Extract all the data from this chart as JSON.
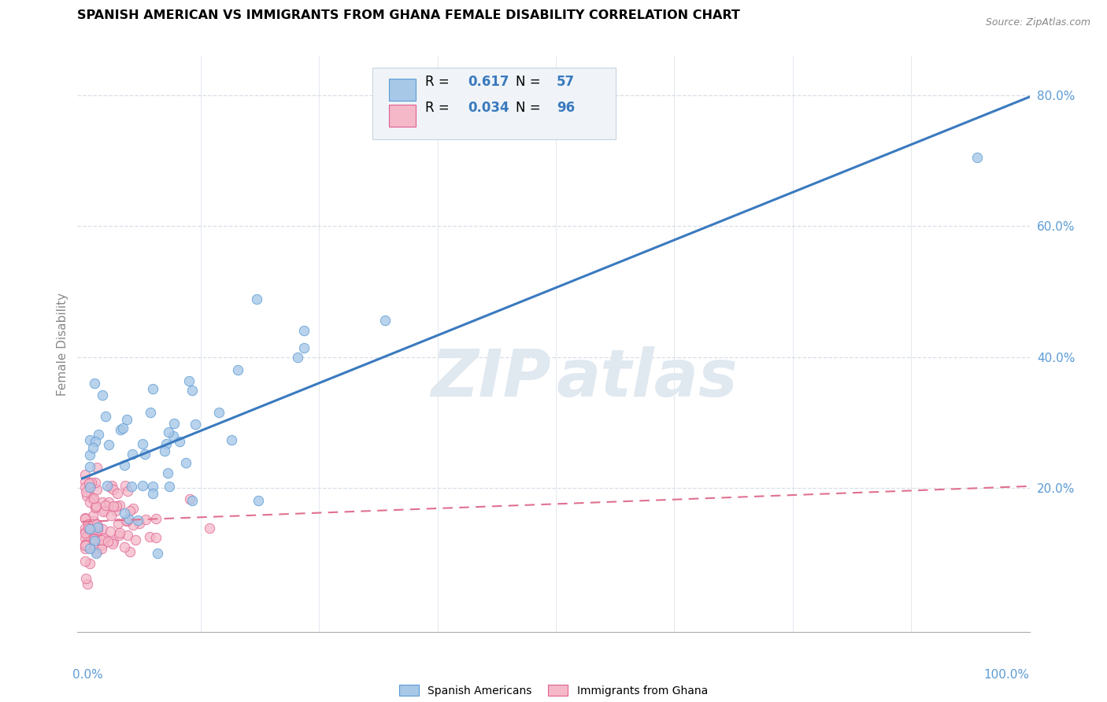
{
  "title": "SPANISH AMERICAN VS IMMIGRANTS FROM GHANA FEMALE DISABILITY CORRELATION CHART",
  "source": "Source: ZipAtlas.com",
  "ylabel": "Female Disability",
  "r_blue": 0.617,
  "n_blue": 57,
  "r_pink": 0.034,
  "n_pink": 96,
  "blue_color": "#a8c8e8",
  "blue_edge_color": "#5b9bd5",
  "pink_color": "#f4b8c8",
  "pink_edge_color": "#e06090",
  "blue_line_color": "#3a7abf",
  "pink_line_color": "#e07090",
  "legend_box_color": "#f0f4f8",
  "legend_border_color": "#c8d4e0",
  "ytick_color": "#5b9bd5",
  "xtick_color": "#5b9bd5",
  "grid_color": "#d8dfe8",
  "watermark_color": "#e0e8f0"
}
